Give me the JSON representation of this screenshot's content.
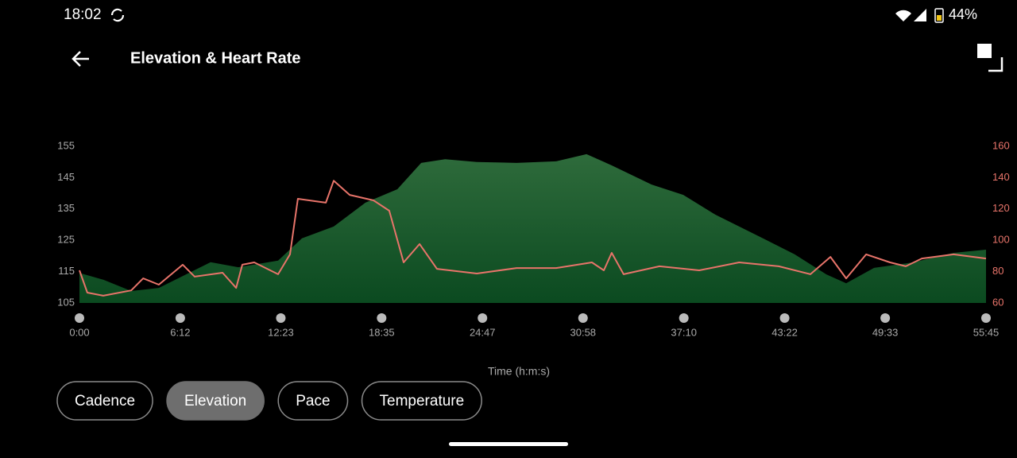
{
  "status_bar": {
    "time": "18:02",
    "battery": "44%"
  },
  "header": {
    "title": "Elevation & Heart Rate"
  },
  "chart_data": {
    "type": "area-line",
    "xlabel": "Time (h:m:s)",
    "xlim": [
      0,
      3345
    ],
    "xticks": [
      {
        "value": 0,
        "label": "0:00"
      },
      {
        "value": 372,
        "label": "6:12"
      },
      {
        "value": 743,
        "label": "12:23"
      },
      {
        "value": 1115,
        "label": "18:35"
      },
      {
        "value": 1487,
        "label": "24:47"
      },
      {
        "value": 1858,
        "label": "30:58"
      },
      {
        "value": 2230,
        "label": "37:10"
      },
      {
        "value": 2602,
        "label": "43:22"
      },
      {
        "value": 2973,
        "label": "49:33"
      },
      {
        "value": 3345,
        "label": "55:45"
      }
    ],
    "ylim": [
      105,
      155
    ],
    "yticks": [
      105,
      115,
      125,
      135,
      145,
      155
    ],
    "y2lim": [
      60,
      160
    ],
    "y2ticks": [
      60,
      80,
      100,
      120,
      140,
      160
    ],
    "series": [
      {
        "name": "Elevation",
        "kind": "area",
        "color": "#2e6b3b",
        "color2": "#0b4a20",
        "x": [
          0,
          88,
          191,
          293,
          484,
          586,
          733,
          821,
          938,
          1055,
          1173,
          1261,
          1349,
          1466,
          1613,
          1759,
          1871,
          1964,
          2111,
          2228,
          2346,
          2522,
          2639,
          2756,
          2829,
          2932,
          3079,
          3225,
          3345
        ],
        "values": [
          114.6,
          112.4,
          108.8,
          109.8,
          118,
          116.4,
          118.5,
          125.6,
          129.4,
          137,
          141.3,
          149.7,
          150.9,
          150,
          149.7,
          150.2,
          152.5,
          148.9,
          142.8,
          139.5,
          133.2,
          125.6,
          120.5,
          114.1,
          111.3,
          116.2,
          118,
          121,
          122
        ]
      },
      {
        "name": "Heart Rate",
        "kind": "line",
        "axis": "y2",
        "color": "#e8746a",
        "x": [
          0,
          29,
          88,
          191,
          235,
          293,
          381,
          425,
          528,
          578,
          601,
          645,
          733,
          777,
          806,
          909,
          938,
          997,
          1085,
          1143,
          1196,
          1255,
          1319,
          1466,
          1613,
          1759,
          1891,
          1935,
          1964,
          2008,
          2140,
          2287,
          2434,
          2580,
          2697,
          2771,
          2829,
          2903,
          2991,
          3049,
          3108,
          3225,
          3345
        ],
        "values": [
          80.8,
          66.6,
          64.6,
          68,
          75.7,
          71.7,
          84.4,
          76.8,
          79.3,
          69.6,
          84.4,
          85.9,
          78.3,
          91,
          126.5,
          124,
          138,
          129,
          125.5,
          118.9,
          85.9,
          97.6,
          81.8,
          78.8,
          82.3,
          82.3,
          85.9,
          80.8,
          92,
          78.3,
          83.4,
          80.8,
          85.9,
          83.4,
          78.3,
          89.4,
          75.7,
          91,
          85.9,
          83.4,
          88.4,
          91,
          88.4
        ]
      }
    ]
  },
  "buttons": [
    {
      "label": "Cadence",
      "active": false
    },
    {
      "label": "Elevation",
      "active": true
    },
    {
      "label": "Pace",
      "active": false
    },
    {
      "label": "Temperature",
      "active": false
    }
  ]
}
